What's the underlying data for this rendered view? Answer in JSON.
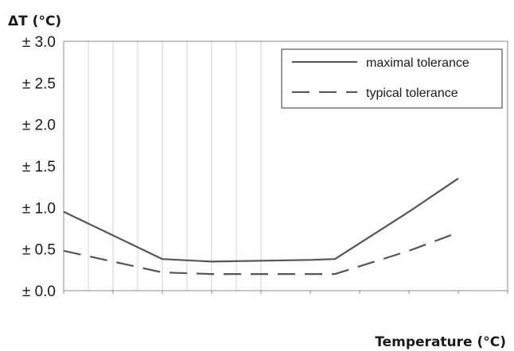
{
  "chart_data": {
    "type": "line",
    "ylabel": "ΔT (°C)",
    "xlabel": "Temperature (°C)",
    "x": [
      -40,
      -20,
      0,
      20,
      40,
      60,
      80,
      100,
      120,
      140
    ],
    "ylim": [
      0,
      3
    ],
    "yticks": [
      0,
      0.5,
      1,
      1.5,
      2,
      2.5,
      3
    ],
    "ytick_labels": [
      "± 0.0",
      "± 0.5",
      "± 1.0",
      "± 1.5",
      "± 2.0",
      "± 2.5",
      "± 3.0"
    ],
    "grid": "vertical",
    "legend_position": "top-right",
    "series": [
      {
        "name": "maximal tolerance",
        "style": "solid",
        "color": "#555555",
        "points": [
          [
            -40,
            0.95
          ],
          [
            0,
            0.38
          ],
          [
            20,
            0.35
          ],
          [
            60,
            0.37
          ],
          [
            70,
            0.38
          ],
          [
            100,
            0.95
          ],
          [
            120,
            1.35
          ]
        ]
      },
      {
        "name": "typical tolerance",
        "style": "dashed",
        "color": "#555555",
        "points": [
          [
            -40,
            0.48
          ],
          [
            0,
            0.22
          ],
          [
            20,
            0.2
          ],
          [
            70,
            0.2
          ],
          [
            100,
            0.48
          ],
          [
            120,
            0.7
          ]
        ]
      }
    ]
  }
}
